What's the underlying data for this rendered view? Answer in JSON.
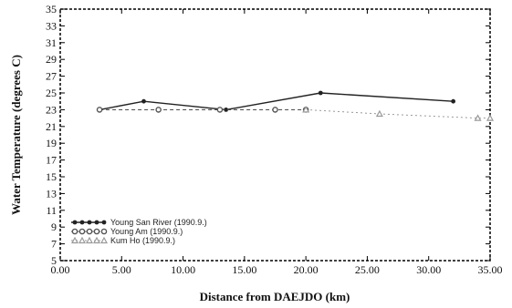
{
  "chart_data": {
    "type": "line",
    "xlabel": "Distance from DAEJDO (km)",
    "ylabel": "Water Temperature (degrees C)",
    "xlim": [
      0,
      35
    ],
    "ylim": [
      5,
      35
    ],
    "xticks": [
      "0.00",
      "5.00",
      "10.00",
      "15.00",
      "20.00",
      "25.00",
      "30.00",
      "35.00"
    ],
    "yticks": [
      "5",
      "7",
      "9",
      "11",
      "13",
      "15",
      "17",
      "19",
      "21",
      "23",
      "25",
      "27",
      "29",
      "31",
      "33",
      "35"
    ],
    "legend_position": "lower-left",
    "series": [
      {
        "name": "Young San River (1990.9.)",
        "marker": "star",
        "x": [
          3.2,
          6.8,
          13.5,
          21.2,
          32.0
        ],
        "y": [
          23.0,
          24.0,
          23.0,
          25.0,
          24.0
        ]
      },
      {
        "name": "Young Am (1990.9.)",
        "marker": "circle",
        "x": [
          3.2,
          8.0,
          13.0,
          17.5,
          20.0
        ],
        "y": [
          23.0,
          23.0,
          23.0,
          23.0,
          23.0
        ]
      },
      {
        "name": "Kum Ho (1990.9.)",
        "marker": "triangle",
        "x": [
          20.0,
          26.0,
          34.0,
          35.0
        ],
        "y": [
          23.0,
          22.5,
          22.0,
          22.0
        ]
      }
    ]
  }
}
